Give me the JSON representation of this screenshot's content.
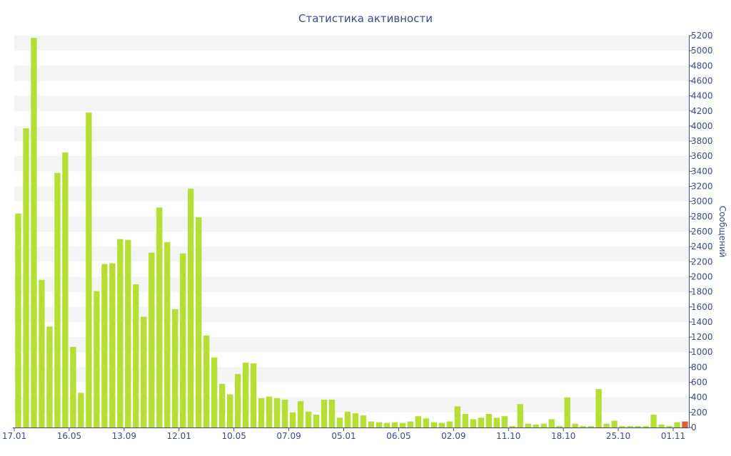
{
  "chart_data": {
    "type": "bar",
    "title": "Статистика активности",
    "ylabel": "Сообщений",
    "xlabel": "",
    "ylim": [
      0,
      5200
    ],
    "y_ticks": [
      0,
      200,
      400,
      600,
      800,
      1000,
      1200,
      1400,
      1600,
      1800,
      2000,
      2200,
      2400,
      2600,
      2800,
      3000,
      3200,
      3400,
      3600,
      3800,
      4000,
      4200,
      4400,
      4600,
      4800,
      5000,
      5200
    ],
    "x_tick_labels": [
      "17.01",
      "16.05",
      "13.09",
      "12.01",
      "10.05",
      "07.09",
      "05.01",
      "06.05",
      "02.09",
      "11.10",
      "18.10",
      "25.10",
      "01.11"
    ],
    "x_tick_positions": [
      0,
      7,
      14,
      21,
      28,
      35,
      42,
      49,
      56,
      63,
      70,
      77,
      84
    ],
    "grid": "horizontal bands",
    "y_axis_side": "right",
    "colors": {
      "bar": "#b5e033",
      "last_bar": "#e06030",
      "axis": "#3b4a8c",
      "band": "#f4f4f4"
    },
    "values": [
      2840,
      3970,
      5170,
      1960,
      1340,
      3380,
      3650,
      1070,
      460,
      4180,
      1810,
      2170,
      2180,
      2500,
      2490,
      1900,
      1470,
      2320,
      2920,
      2460,
      1570,
      2310,
      3170,
      2790,
      1220,
      930,
      580,
      440,
      710,
      860,
      850,
      390,
      410,
      390,
      370,
      200,
      350,
      210,
      170,
      370,
      370,
      130,
      210,
      190,
      160,
      80,
      70,
      60,
      70,
      60,
      80,
      150,
      120,
      70,
      60,
      80,
      280,
      180,
      110,
      130,
      180,
      130,
      150,
      20,
      310,
      50,
      40,
      50,
      110,
      20,
      400,
      50,
      20,
      20,
      510,
      50,
      90,
      20,
      20,
      20,
      20,
      170,
      40,
      20,
      70,
      80
    ]
  }
}
